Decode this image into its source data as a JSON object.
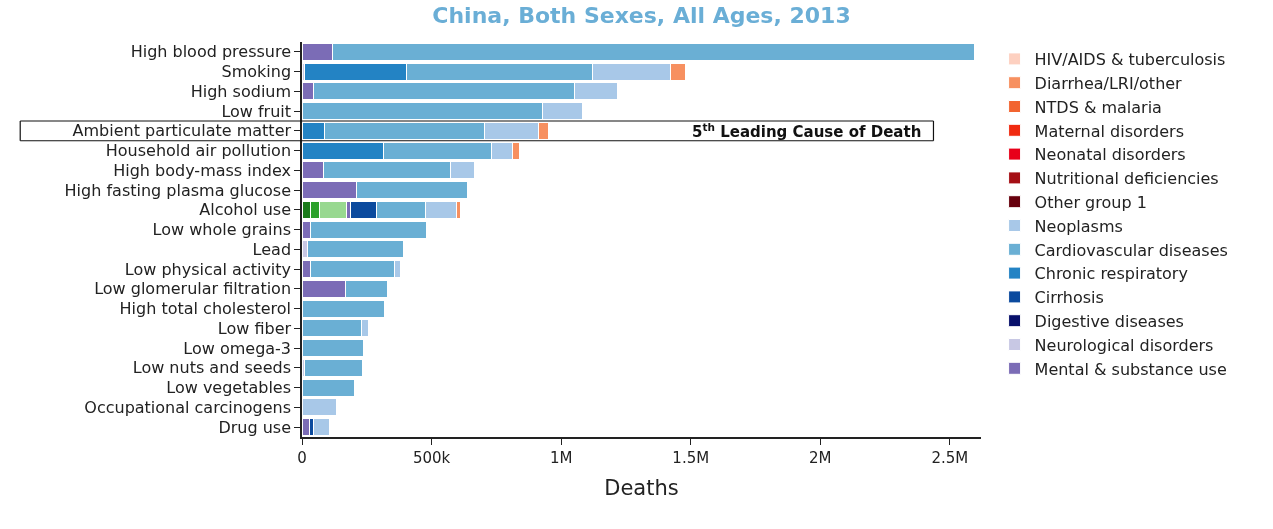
{
  "chart_data": {
    "type": "bar",
    "orientation": "horizontal",
    "stacked": true,
    "title": "China, Both Sexes, All Ages, 2013",
    "xlabel": "Deaths",
    "categories": [
      "High blood pressure",
      "Smoking",
      "High sodium",
      "Low fruit",
      "Ambient particulate matter",
      "Household air pollution",
      "High body-mass index",
      "High fasting plasma glucose",
      "Alcohol use",
      "Low whole grains",
      "Lead",
      "Low physical activity",
      "Low glomerular filtration",
      "High total cholesterol",
      "Low fiber",
      "Low omega-3",
      "Low nuts and seeds",
      "Low vegetables",
      "Occupational carcinogens",
      "Drug use"
    ],
    "xlim": [
      0,
      2620000
    ],
    "xticks": [
      0,
      {
        "value": 500000,
        "label": "500k"
      },
      {
        "value": 1000000,
        "label": "1M"
      },
      {
        "value": 1500000,
        "label": "1.5M"
      },
      {
        "value": 2000000,
        "label": "2M"
      },
      {
        "value": 2500000,
        "label": "2.5M"
      }
    ],
    "legend": "right",
    "annotations": [
      "5$^{th}$ Leading Cause of Death"
    ],
    "series": [
      {
        "color": "#1a7a1a",
        "values": [
          null,
          null,
          null,
          null,
          null,
          null,
          null,
          null,
          31000,
          null,
          null,
          null,
          null,
          null,
          null,
          null,
          null,
          null,
          null,
          null
        ]
      },
      {
        "color": "#2ca02c",
        "values": [
          null,
          null,
          null,
          null,
          null,
          null,
          null,
          null,
          35000,
          null,
          null,
          null,
          null,
          null,
          null,
          null,
          null,
          null,
          null,
          null
        ]
      },
      {
        "color": "#98d890",
        "values": [
          null,
          null,
          null,
          null,
          null,
          null,
          null,
          null,
          105000,
          null,
          null,
          null,
          null,
          null,
          null,
          null,
          null,
          null,
          null,
          null
        ]
      },
      {
        "name": "Mental & substance use",
        "color": "#7b6cb6",
        "values": [
          116000,
          null,
          44000,
          null,
          null,
          null,
          82000,
          212000,
          15000,
          33000,
          null,
          31000,
          167000,
          null,
          null,
          null,
          null,
          null,
          null,
          28000
        ]
      },
      {
        "name": "Neurological disorders",
        "color": "#c8c8e4",
        "values": [
          null,
          10000,
          null,
          null,
          null,
          null,
          null,
          null,
          null,
          null,
          23000,
          null,
          null,
          null,
          null,
          null,
          10000,
          null,
          null,
          null
        ]
      },
      {
        "name": "Digestive diseases",
        "color": "#08106b",
        "values": [
          null,
          null,
          null,
          null,
          null,
          null,
          null,
          null,
          null,
          null,
          null,
          null,
          null,
          null,
          null,
          null,
          null,
          null,
          null,
          null
        ]
      },
      {
        "name": "Cirrhosis",
        "color": "#0b4a9e",
        "values": [
          null,
          null,
          null,
          null,
          null,
          null,
          null,
          null,
          100000,
          null,
          null,
          null,
          null,
          null,
          null,
          null,
          null,
          null,
          null,
          15000
        ]
      },
      {
        "name": "Chronic respiratory",
        "color": "#2383c4",
        "values": [
          null,
          392000,
          null,
          null,
          87000,
          315000,
          null,
          null,
          null,
          null,
          null,
          null,
          null,
          null,
          null,
          null,
          null,
          null,
          null,
          null
        ]
      },
      {
        "name": "Cardiovascular diseases",
        "color": "#6aafd4",
        "values": [
          2478000,
          719000,
          1009000,
          928000,
          616000,
          417000,
          492000,
          427000,
          189000,
          449000,
          368000,
          324000,
          162000,
          317000,
          231000,
          237000,
          224000,
          204000,
          null,
          null
        ]
      },
      {
        "name": "Neoplasms",
        "color": "#a8c8e8",
        "values": [
          null,
          299000,
          164000,
          155000,
          208000,
          80000,
          93000,
          null,
          123000,
          null,
          null,
          25000,
          null,
          null,
          26000,
          null,
          null,
          null,
          134000,
          63000
        ]
      },
      {
        "name": "Other group 1",
        "color": "#67000d",
        "values": [
          null,
          null,
          null,
          null,
          null,
          null,
          null,
          null,
          null,
          null,
          null,
          null,
          null,
          null,
          null,
          null,
          null,
          null,
          null,
          null
        ]
      },
      {
        "name": "Nutritional deficiencies",
        "color": "#a50f15",
        "values": [
          null,
          null,
          null,
          null,
          null,
          null,
          null,
          null,
          null,
          null,
          null,
          null,
          null,
          null,
          null,
          null,
          null,
          null,
          null,
          null
        ]
      },
      {
        "name": "Neonatal disorders",
        "color": "#e8001a",
        "values": [
          null,
          null,
          null,
          null,
          null,
          null,
          null,
          null,
          null,
          null,
          null,
          null,
          null,
          null,
          null,
          null,
          null,
          null,
          null,
          null
        ]
      },
      {
        "name": "Maternal disorders",
        "color": "#f02a10",
        "values": [
          null,
          null,
          null,
          null,
          null,
          null,
          null,
          null,
          null,
          null,
          null,
          null,
          null,
          null,
          null,
          null,
          null,
          null,
          null,
          null
        ]
      },
      {
        "name": "NTDS & malaria",
        "color": "#f26430",
        "values": [
          null,
          null,
          null,
          null,
          null,
          null,
          null,
          null,
          null,
          null,
          null,
          null,
          null,
          null,
          null,
          null,
          null,
          null,
          null,
          null
        ]
      },
      {
        "name": "Diarrhea/LRI/other",
        "color": "#f79060",
        "values": [
          null,
          59000,
          null,
          null,
          39000,
          26000,
          null,
          null,
          12000,
          null,
          null,
          null,
          null,
          null,
          null,
          null,
          null,
          null,
          null,
          null
        ]
      },
      {
        "name": "HIV/AIDS & tuberculosis",
        "color": "#fdd0c0",
        "values": [
          null,
          null,
          null,
          null,
          null,
          null,
          null,
          null,
          null,
          null,
          null,
          null,
          null,
          null,
          null,
          null,
          null,
          null,
          null,
          null
        ]
      }
    ]
  }
}
